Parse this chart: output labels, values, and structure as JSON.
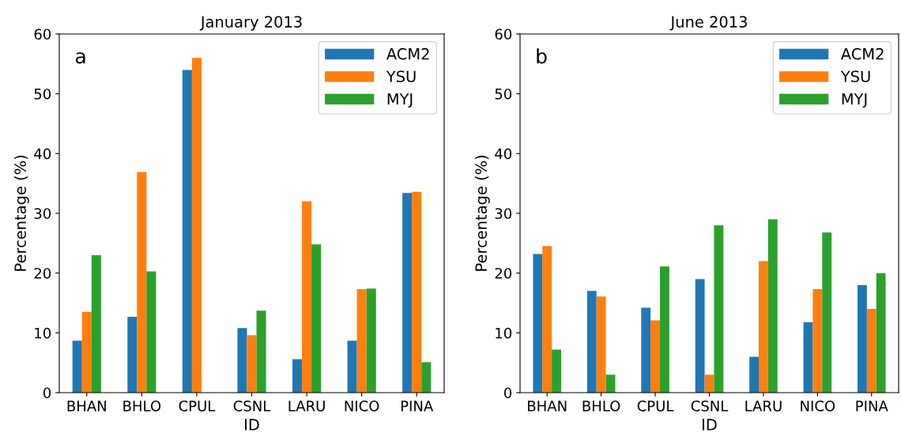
{
  "chart_data": [
    {
      "type": "bar",
      "title": "January 2013",
      "xlabel": "ID",
      "ylabel": "Percentage (%)",
      "annotations": [
        "a"
      ],
      "categories": [
        "BHAN",
        "BHLO",
        "CPUL",
        "CSNL",
        "LARU",
        "NICO",
        "PINA"
      ],
      "ylim": [
        0,
        60
      ],
      "yticks": [
        0,
        10,
        20,
        30,
        40,
        50,
        60
      ],
      "legend": "top right",
      "grid": false,
      "series": [
        {
          "name": "ACM2",
          "color": "#1f77b4",
          "values": [
            8.7,
            12.7,
            54,
            10.8,
            5.6,
            8.7,
            33.4
          ]
        },
        {
          "name": "YSU",
          "color": "#ff7f0e",
          "values": [
            13.5,
            36.9,
            56,
            9.6,
            32,
            17.3,
            33.6
          ]
        },
        {
          "name": "MYJ",
          "color": "#2ca02c",
          "values": [
            23,
            20.3,
            0,
            13.7,
            24.8,
            17.4,
            5.1
          ]
        }
      ]
    },
    {
      "type": "bar",
      "title": "June 2013",
      "xlabel": "ID",
      "ylabel": "Percentage (%)",
      "annotations": [
        "b"
      ],
      "categories": [
        "BHAN",
        "BHLO",
        "CPUL",
        "CSNL",
        "LARU",
        "NICO",
        "PINA"
      ],
      "ylim": [
        0,
        60
      ],
      "yticks": [
        0,
        10,
        20,
        30,
        40,
        50,
        60
      ],
      "legend": "top right",
      "grid": false,
      "series": [
        {
          "name": "ACM2",
          "color": "#1f77b4",
          "values": [
            23.2,
            17,
            14.2,
            19,
            6,
            11.8,
            18
          ]
        },
        {
          "name": "YSU",
          "color": "#ff7f0e",
          "values": [
            24.5,
            16.1,
            12.1,
            3,
            22,
            17.3,
            14
          ]
        },
        {
          "name": "MYJ",
          "color": "#2ca02c",
          "values": [
            7.2,
            3,
            21.1,
            28,
            29,
            26.8,
            20
          ]
        }
      ]
    }
  ]
}
